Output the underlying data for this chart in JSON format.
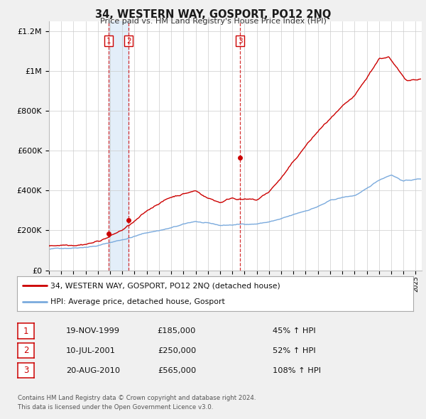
{
  "title": "34, WESTERN WAY, GOSPORT, PO12 2NQ",
  "subtitle": "Price paid vs. HM Land Registry's House Price Index (HPI)",
  "legend_label_red": "34, WESTERN WAY, GOSPORT, PO12 2NQ (detached house)",
  "legend_label_blue": "HPI: Average price, detached house, Gosport",
  "footer_line1": "Contains HM Land Registry data © Crown copyright and database right 2024.",
  "footer_line2": "This data is licensed under the Open Government Licence v3.0.",
  "transactions": [
    {
      "num": 1,
      "date": "19-NOV-1999",
      "price": 185000,
      "pct": "45%",
      "year": 1999.88
    },
    {
      "num": 2,
      "date": "10-JUL-2001",
      "price": 250000,
      "pct": "52%",
      "year": 2001.52
    },
    {
      "num": 3,
      "date": "20-AUG-2010",
      "price": 565000,
      "pct": "108%",
      "year": 2010.63
    }
  ],
  "vline_color": "#cc0000",
  "vline_style": "--",
  "vline_alpha": 0.8,
  "vline_shade_color": "#cce0f5",
  "vline_shade_alpha": 0.55,
  "red_line_color": "#cc0000",
  "blue_line_color": "#7aaadd",
  "background_color": "#f0f0f0",
  "plot_bg_color": "#ffffff",
  "grid_color": "#cccccc",
  "ylim": [
    0,
    1250000
  ],
  "xlim_start": 1995.0,
  "xlim_end": 2025.5,
  "yticks": [
    0,
    200000,
    400000,
    600000,
    800000,
    1000000,
    1200000
  ],
  "ytick_labels": [
    "£0",
    "£200K",
    "£400K",
    "£600K",
    "£800K",
    "£1M",
    "£1.2M"
  ],
  "xticks": [
    1995,
    1996,
    1997,
    1998,
    1999,
    2000,
    2001,
    2002,
    2003,
    2004,
    2005,
    2006,
    2007,
    2008,
    2009,
    2010,
    2011,
    2012,
    2013,
    2014,
    2015,
    2016,
    2017,
    2018,
    2019,
    2020,
    2021,
    2022,
    2023,
    2024,
    2025
  ]
}
